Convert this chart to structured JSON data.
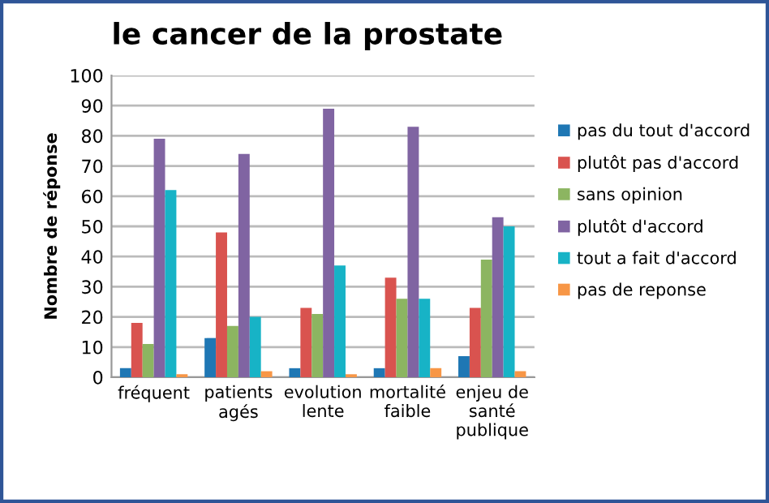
{
  "chart_data": {
    "type": "bar",
    "title": "le cancer de la prostate",
    "ylabel": "Nombre de réponse",
    "categories": [
      "fréquent",
      "patients agés",
      "evolution lente",
      "mortalité faible",
      "enjeu de santé publique"
    ],
    "series": [
      {
        "name": "pas du tout d'accord",
        "color": "#1f77b4",
        "values": [
          3,
          13,
          3,
          3,
          7
        ]
      },
      {
        "name": "plutôt pas d'accord",
        "color": "#d9534f",
        "values": [
          18,
          48,
          23,
          33,
          23
        ]
      },
      {
        "name": "sans opinion",
        "color": "#8cb561",
        "values": [
          11,
          17,
          21,
          26,
          39
        ]
      },
      {
        "name": "plutôt d'accord",
        "color": "#8064a2",
        "values": [
          79,
          74,
          89,
          83,
          53
        ]
      },
      {
        "name": "tout a fait d'accord",
        "color": "#17b3c6",
        "values": [
          62,
          20,
          37,
          26,
          50
        ]
      },
      {
        "name": "pas de reponse",
        "color": "#f79646",
        "values": [
          1,
          2,
          1,
          3,
          2
        ]
      }
    ],
    "ylim": [
      0,
      100
    ],
    "yticks": [
      0,
      10,
      20,
      30,
      40,
      50,
      60,
      70,
      80,
      90,
      100
    ],
    "grid": "y",
    "legend": "right"
  }
}
